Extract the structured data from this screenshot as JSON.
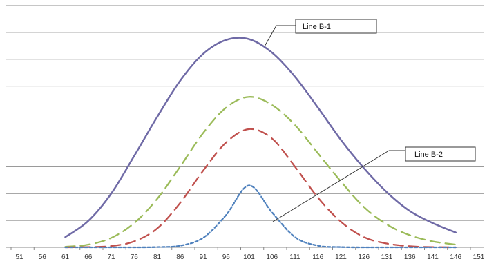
{
  "chart_data": {
    "type": "line",
    "title": "",
    "xlabel": "",
    "ylabel": "",
    "xlim": [
      51,
      151
    ],
    "ylim": [
      0,
      9
    ],
    "x_ticks": [
      "51",
      "56",
      "61",
      "66",
      "71",
      "76",
      "81",
      "86",
      "91",
      "96",
      "101",
      "106",
      "111",
      "116",
      "121",
      "126",
      "131",
      "136",
      "141",
      "146",
      "151"
    ],
    "grid": true,
    "legend": "none",
    "series": [
      {
        "color": "#6F6AA6",
        "style": "solid",
        "x": [
          61,
          66,
          71,
          76,
          81,
          86,
          91,
          96,
          101,
          106,
          111,
          116,
          121,
          126,
          131,
          136,
          141,
          146
        ],
        "y": [
          0.38,
          0.98,
          2.0,
          3.4,
          4.85,
          6.2,
          7.2,
          7.72,
          7.75,
          7.25,
          6.35,
          5.2,
          4.0,
          2.95,
          2.05,
          1.35,
          0.9,
          0.55
        ]
      },
      {
        "color": "#9BBB59",
        "style": "dashed",
        "x": [
          61,
          66,
          71,
          76,
          81,
          86,
          91,
          96,
          101,
          106,
          111,
          116,
          121,
          126,
          131,
          136,
          141,
          146
        ],
        "y": [
          0.02,
          0.1,
          0.35,
          0.9,
          1.8,
          3.0,
          4.25,
          5.2,
          5.6,
          5.3,
          4.55,
          3.5,
          2.45,
          1.5,
          0.85,
          0.45,
          0.22,
          0.1
        ]
      },
      {
        "color": "#C0504D",
        "style": "dashed",
        "x": [
          61,
          66,
          71,
          76,
          81,
          86,
          91,
          96,
          101,
          106,
          111,
          116,
          121,
          126,
          131,
          136,
          141,
          146
        ],
        "y": [
          0,
          0.01,
          0.05,
          0.22,
          0.7,
          1.65,
          2.85,
          3.9,
          4.4,
          4.05,
          3.0,
          1.85,
          0.95,
          0.38,
          0.14,
          0.04,
          0.01,
          0
        ]
      },
      {
        "color": "#4F81BD",
        "style": "dotted",
        "x": [
          61,
          66,
          71,
          76,
          81,
          86,
          91,
          96,
          101,
          106,
          111,
          116,
          121,
          126,
          131,
          136,
          141,
          146
        ],
        "y": [
          0,
          0,
          0,
          0,
          0.01,
          0.06,
          0.35,
          1.2,
          2.3,
          1.3,
          0.38,
          0.06,
          0.01,
          0,
          0,
          0,
          0,
          0
        ]
      }
    ],
    "annotations": [
      {
        "text": "Line B-1"
      },
      {
        "text": "Line B-2"
      }
    ]
  }
}
